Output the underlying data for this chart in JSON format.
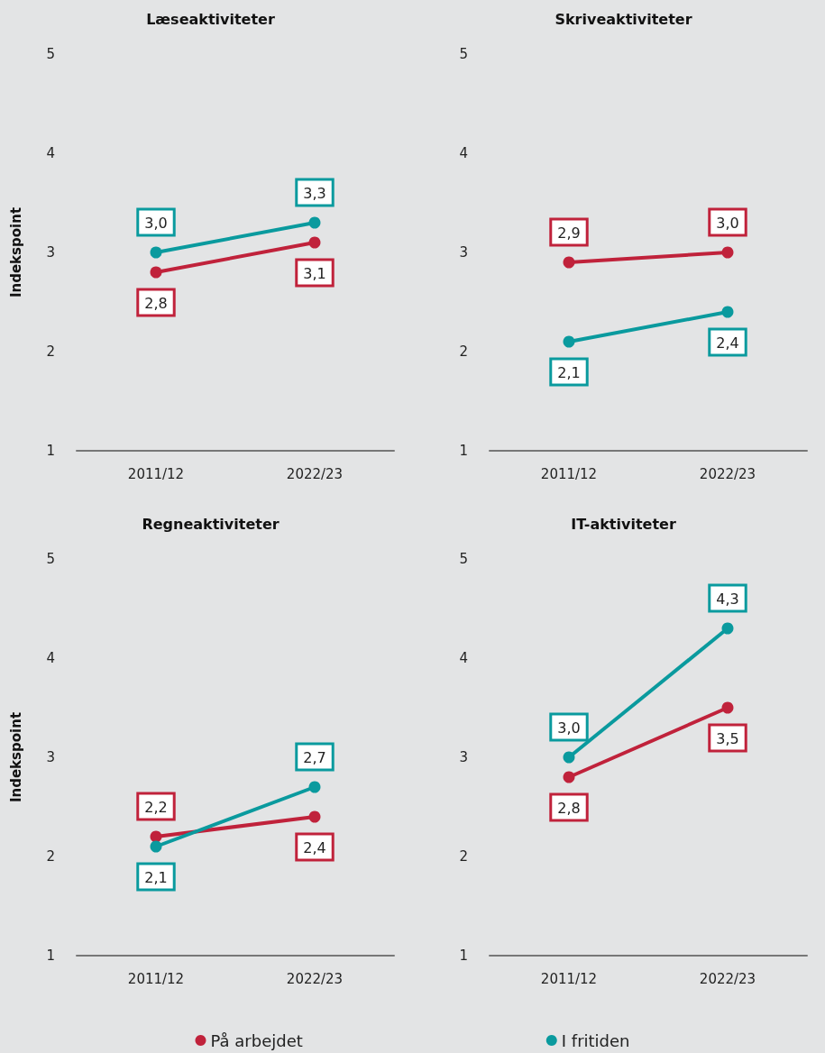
{
  "chart_data": [
    {
      "type": "line",
      "title": "Læseaktiviteter",
      "ylabel": "Indekspoint",
      "categories": [
        "2011/12",
        "2022/23"
      ],
      "ylim": [
        1,
        5
      ],
      "yticks": [
        1,
        2,
        3,
        4,
        5
      ],
      "grid": false,
      "legend": false,
      "marker": "circle",
      "series": [
        {
          "color": "#c0223b",
          "values": [
            2.8,
            3.1
          ],
          "value_labels": [
            "2,8",
            "3,1"
          ]
        },
        {
          "color": "#0a9a9e",
          "values": [
            3.0,
            3.3
          ],
          "value_labels": [
            "3,0",
            "3,3"
          ]
        }
      ]
    },
    {
      "type": "line",
      "title": "Skriveaktiviteter",
      "categories": [
        "2011/12",
        "2022/23"
      ],
      "ylim": [
        1,
        5
      ],
      "yticks": [
        1,
        2,
        3,
        4,
        5
      ],
      "grid": false,
      "legend": false,
      "marker": "circle",
      "series": [
        {
          "color": "#c0223b",
          "values": [
            2.9,
            3.0
          ],
          "value_labels": [
            "2,9",
            "3,0"
          ]
        },
        {
          "color": "#0a9a9e",
          "values": [
            2.1,
            2.4
          ],
          "value_labels": [
            "2,1",
            "2,4"
          ]
        }
      ]
    },
    {
      "type": "line",
      "title": "Regneaktiviteter",
      "ylabel": "Indekspoint",
      "categories": [
        "2011/12",
        "2022/23"
      ],
      "ylim": [
        1,
        5
      ],
      "yticks": [
        1,
        2,
        3,
        4,
        5
      ],
      "grid": false,
      "legend": false,
      "marker": "circle",
      "series": [
        {
          "color": "#c0223b",
          "values": [
            2.2,
            2.4
          ],
          "value_labels": [
            "2,2",
            "2,4"
          ]
        },
        {
          "color": "#0a9a9e",
          "values": [
            2.1,
            2.7
          ],
          "value_labels": [
            "2,1",
            "2,7"
          ]
        }
      ]
    },
    {
      "type": "line",
      "title": "IT-aktiviteter",
      "categories": [
        "2011/12",
        "2022/23"
      ],
      "ylim": [
        1,
        5
      ],
      "yticks": [
        1,
        2,
        3,
        4,
        5
      ],
      "grid": false,
      "legend": "bottom",
      "marker": "circle",
      "series": [
        {
          "name": "På arbejdet",
          "color": "#c0223b",
          "values": [
            2.8,
            3.5
          ],
          "value_labels": [
            "2,8",
            "3,5"
          ]
        },
        {
          "name": "I fritiden",
          "color": "#0a9a9e",
          "values": [
            3.0,
            4.3
          ],
          "value_labels": [
            "3,0",
            "4,3"
          ]
        }
      ]
    }
  ]
}
